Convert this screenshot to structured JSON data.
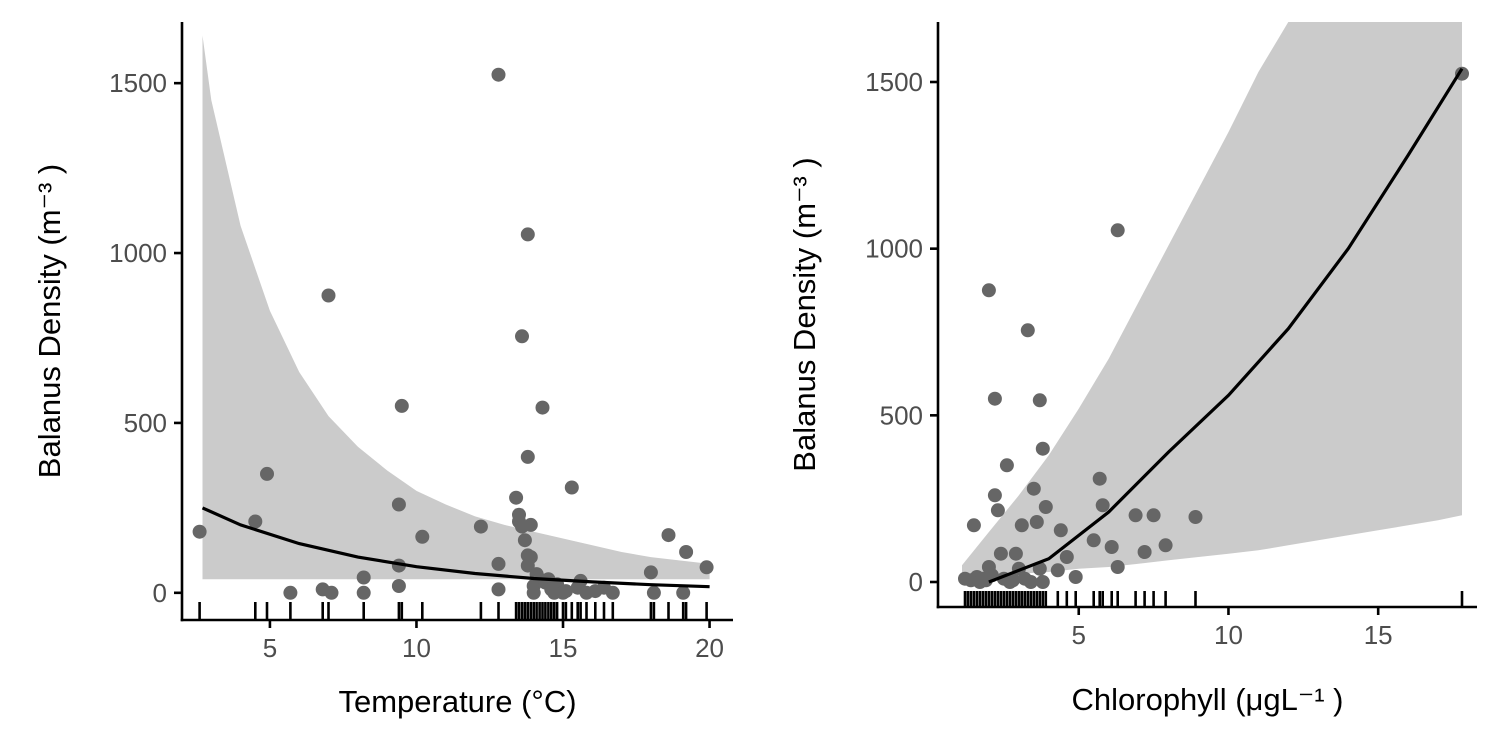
{
  "chart_data": [
    {
      "type": "scatter",
      "xlabel": "Temperature (°C)",
      "ylabel": "Balanus Density (m⁻³ )",
      "xlim": [
        2.0,
        20.8
      ],
      "ylim": [
        -80,
        1680
      ],
      "x_ticks": [
        5,
        10,
        15,
        20
      ],
      "y_ticks": [
        0,
        500,
        1000,
        1500
      ],
      "grid": false,
      "legend": "none",
      "colors": {
        "points": "#666666",
        "band": "#cbcbcb",
        "line": "#000000"
      },
      "points": [
        [
          2.6,
          180
        ],
        [
          4.5,
          210
        ],
        [
          4.9,
          350
        ],
        [
          5.7,
          0
        ],
        [
          6.8,
          10
        ],
        [
          7.0,
          875
        ],
        [
          7.1,
          0
        ],
        [
          8.2,
          45
        ],
        [
          8.2,
          0
        ],
        [
          9.4,
          260
        ],
        [
          9.4,
          80
        ],
        [
          9.5,
          550
        ],
        [
          9.4,
          20
        ],
        [
          10.2,
          165
        ],
        [
          12.2,
          195
        ],
        [
          12.8,
          1525
        ],
        [
          12.8,
          85
        ],
        [
          12.8,
          10
        ],
        [
          13.4,
          280
        ],
        [
          13.5,
          230
        ],
        [
          13.5,
          210
        ],
        [
          13.6,
          755
        ],
        [
          13.6,
          195
        ],
        [
          13.7,
          155
        ],
        [
          13.8,
          1055
        ],
        [
          13.8,
          400
        ],
        [
          13.8,
          110
        ],
        [
          13.9,
          200
        ],
        [
          13.9,
          105
        ],
        [
          13.8,
          80
        ],
        [
          14.0,
          20
        ],
        [
          14.0,
          0
        ],
        [
          14.1,
          55
        ],
        [
          14.2,
          40
        ],
        [
          14.3,
          545
        ],
        [
          14.4,
          30
        ],
        [
          14.5,
          40
        ],
        [
          14.6,
          10
        ],
        [
          14.7,
          0
        ],
        [
          14.8,
          25
        ],
        [
          15.0,
          0
        ],
        [
          15.1,
          5
        ],
        [
          15.3,
          310
        ],
        [
          15.5,
          15
        ],
        [
          15.6,
          35
        ],
        [
          15.8,
          0
        ],
        [
          16.1,
          5
        ],
        [
          16.4,
          15
        ],
        [
          16.7,
          0
        ],
        [
          18.0,
          60
        ],
        [
          18.1,
          0
        ],
        [
          18.6,
          170
        ],
        [
          19.1,
          0
        ],
        [
          19.2,
          120
        ],
        [
          19.9,
          75
        ]
      ],
      "rug_x": [
        2.6,
        4.5,
        4.9,
        5.7,
        6.8,
        7.0,
        8.2,
        9.4,
        9.5,
        10.2,
        12.2,
        12.8,
        13.4,
        13.5,
        13.6,
        13.7,
        13.8,
        13.9,
        14.0,
        14.1,
        14.2,
        14.3,
        14.4,
        14.5,
        14.6,
        14.7,
        14.8,
        15.0,
        15.1,
        15.3,
        15.5,
        15.6,
        15.8,
        16.1,
        16.4,
        16.7,
        18.0,
        18.1,
        18.6,
        19.1,
        19.2,
        19.9
      ],
      "fit": {
        "x": [
          2.7,
          4,
          6,
          8,
          10,
          12,
          14,
          16,
          18,
          20
        ],
        "y": [
          250,
          200,
          145,
          105,
          77,
          57,
          42,
          32,
          24,
          18
        ]
      },
      "band": {
        "x": [
          2.7,
          3,
          4,
          5,
          6,
          7,
          8,
          9,
          10,
          11,
          12,
          13,
          14,
          15,
          16,
          17,
          18,
          19,
          20
        ],
        "lower": [
          40,
          40,
          40,
          40,
          40,
          40,
          40,
          40,
          40,
          40,
          40,
          40,
          40,
          40,
          40,
          40,
          40,
          40,
          40
        ],
        "upper": [
          1640,
          1450,
          1080,
          830,
          650,
          520,
          430,
          360,
          300,
          260,
          225,
          200,
          180,
          160,
          140,
          120,
          105,
          95,
          85
        ]
      }
    },
    {
      "type": "scatter",
      "xlabel": "Chlorophyll (μgL⁻¹ )",
      "ylabel": "Balanus Density (m⁻³ )",
      "xlim": [
        0.3,
        18.3
      ],
      "ylim": [
        -75,
        1680
      ],
      "x_ticks": [
        5,
        10,
        15
      ],
      "y_ticks": [
        0,
        500,
        1000,
        1500
      ],
      "grid": false,
      "legend": "none",
      "colors": {
        "points": "#666666",
        "band": "#cbcbcb",
        "line": "#000000"
      },
      "points": [
        [
          1.2,
          10
        ],
        [
          1.4,
          5
        ],
        [
          1.5,
          170
        ],
        [
          1.6,
          15
        ],
        [
          1.7,
          0
        ],
        [
          1.8,
          10
        ],
        [
          1.9,
          5
        ],
        [
          2.0,
          875
        ],
        [
          2.0,
          45
        ],
        [
          2.1,
          20
        ],
        [
          2.2,
          550
        ],
        [
          2.2,
          260
        ],
        [
          2.3,
          215
        ],
        [
          2.4,
          85
        ],
        [
          2.5,
          10
        ],
        [
          2.6,
          350
        ],
        [
          2.7,
          0
        ],
        [
          2.8,
          5
        ],
        [
          2.9,
          85
        ],
        [
          3.0,
          40
        ],
        [
          3.1,
          170
        ],
        [
          3.2,
          10
        ],
        [
          3.3,
          755
        ],
        [
          3.4,
          0
        ],
        [
          3.5,
          280
        ],
        [
          3.6,
          180
        ],
        [
          3.7,
          545
        ],
        [
          3.7,
          40
        ],
        [
          3.8,
          400
        ],
        [
          3.8,
          0
        ],
        [
          3.9,
          225
        ],
        [
          4.3,
          35
        ],
        [
          4.4,
          155
        ],
        [
          4.6,
          75
        ],
        [
          4.9,
          15
        ],
        [
          5.5,
          125
        ],
        [
          5.7,
          310
        ],
        [
          5.8,
          230
        ],
        [
          6.1,
          105
        ],
        [
          6.3,
          1055
        ],
        [
          6.3,
          45
        ],
        [
          6.9,
          200
        ],
        [
          7.2,
          90
        ],
        [
          7.5,
          200
        ],
        [
          7.9,
          110
        ],
        [
          8.9,
          195
        ],
        [
          17.8,
          1525
        ]
      ],
      "rug_x": [
        1.2,
        1.3,
        1.4,
        1.5,
        1.6,
        1.7,
        1.8,
        1.9,
        2.0,
        2.1,
        2.2,
        2.3,
        2.4,
        2.5,
        2.6,
        2.7,
        2.8,
        2.9,
        3.0,
        3.1,
        3.2,
        3.3,
        3.4,
        3.5,
        3.6,
        3.7,
        3.8,
        3.9,
        4.3,
        4.6,
        4.9,
        5.5,
        5.7,
        5.8,
        6.1,
        6.3,
        6.9,
        7.2,
        7.5,
        7.9,
        8.9,
        17.8
      ],
      "fit": {
        "x": [
          2.0,
          4,
          6,
          8,
          10,
          12,
          14,
          16,
          17.8
        ],
        "y": [
          0,
          70,
          210,
          390,
          560,
          760,
          1000,
          1280,
          1540
        ]
      },
      "band": {
        "x": [
          1.1,
          2,
          3,
          4,
          5,
          6,
          7,
          8,
          9,
          10,
          11,
          12,
          13,
          14,
          15,
          16,
          17,
          17.8
        ],
        "lower": [
          10,
          15,
          25,
          30,
          40,
          45,
          55,
          65,
          75,
          85,
          95,
          110,
          125,
          140,
          155,
          170,
          185,
          200
        ],
        "upper": [
          50,
          150,
          260,
          380,
          520,
          670,
          840,
          1010,
          1180,
          1350,
          1530,
          1700,
          1700,
          1700,
          1700,
          1700,
          1700,
          1700
        ]
      }
    }
  ]
}
